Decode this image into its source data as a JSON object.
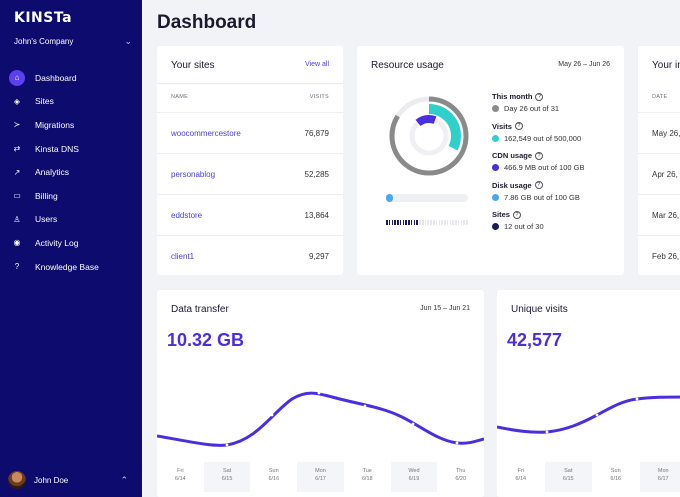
{
  "sidebar": {
    "logo": "KINSTa",
    "company": "John's Company",
    "items": [
      {
        "label": "Dashboard",
        "icon": "home-icon",
        "glyph": "⌂"
      },
      {
        "label": "Sites",
        "icon": "sites-icon",
        "glyph": "◈"
      },
      {
        "label": "Migrations",
        "icon": "migrations-icon",
        "glyph": "≻"
      },
      {
        "label": "Kinsta DNS",
        "icon": "dns-icon",
        "glyph": "⇄"
      },
      {
        "label": "Analytics",
        "icon": "analytics-icon",
        "glyph": "↗"
      },
      {
        "label": "Billing",
        "icon": "billing-icon",
        "glyph": "▭"
      },
      {
        "label": "Users",
        "icon": "users-icon",
        "glyph": "♙"
      },
      {
        "label": "Activity Log",
        "icon": "eye-icon",
        "glyph": "◉"
      },
      {
        "label": "Knowledge Base",
        "icon": "help-icon",
        "glyph": "?"
      }
    ],
    "user": "John Doe"
  },
  "page_title": "Dashboard",
  "sites_card": {
    "title": "Your sites",
    "view_all": "View all",
    "col_name": "NAME",
    "col_visits": "VISITS",
    "rows": [
      {
        "name": "woocommercestore",
        "visits": "76,879"
      },
      {
        "name": "personablog",
        "visits": "52,285"
      },
      {
        "name": "eddstore",
        "visits": "13,864"
      },
      {
        "name": "client1",
        "visits": "9,297"
      }
    ]
  },
  "resource_card": {
    "title": "Resource usage",
    "range": "May 26 – Jun 26",
    "stats": [
      {
        "label": "This month",
        "value": "Day 26 out of 31",
        "color": "#8a8a8a"
      },
      {
        "label": "Visits",
        "value": "162,549 out of 500,000",
        "color": "#2fd0cc"
      },
      {
        "label": "CDN usage",
        "value": "466.9 MB out of 100 GB",
        "color": "#4a2fe0"
      },
      {
        "label": "Disk usage",
        "value": "7.86 GB out of 100 GB",
        "color": "#4aa6ee"
      },
      {
        "label": "Sites",
        "value": "12 out of 30",
        "color": "#1b1a5c"
      }
    ],
    "disk_fraction": 0.08,
    "sites_used": 12,
    "sites_total": 30
  },
  "third_card": {
    "title": "Your in",
    "col_date": "DATE",
    "rows": [
      "May 26,",
      "Apr 26,",
      "Mar 26,",
      "Feb 26,"
    ]
  },
  "transfer_card": {
    "title": "Data transfer",
    "range": "Jun 15 – Jun 21",
    "value": "10.32 GB",
    "days": [
      {
        "d": "Fri",
        "date": "6/14"
      },
      {
        "d": "Sat",
        "date": "6/15"
      },
      {
        "d": "Sun",
        "date": "6/16"
      },
      {
        "d": "Mon",
        "date": "6/17"
      },
      {
        "d": "Tue",
        "date": "6/18"
      },
      {
        "d": "Wed",
        "date": "6/19"
      },
      {
        "d": "Thu",
        "date": "6/20"
      }
    ]
  },
  "visits_card": {
    "title": "Unique visits",
    "value": "42,577",
    "days": [
      {
        "d": "Fri",
        "date": "6/14"
      },
      {
        "d": "Sat",
        "date": "6/15"
      },
      {
        "d": "Sun",
        "date": "6/16"
      },
      {
        "d": "Mon",
        "date": "6/17"
      }
    ]
  },
  "colors": {
    "sidebar": "#0e0b6e",
    "accent": "#4a2fe0",
    "teal": "#2fd0cc"
  }
}
